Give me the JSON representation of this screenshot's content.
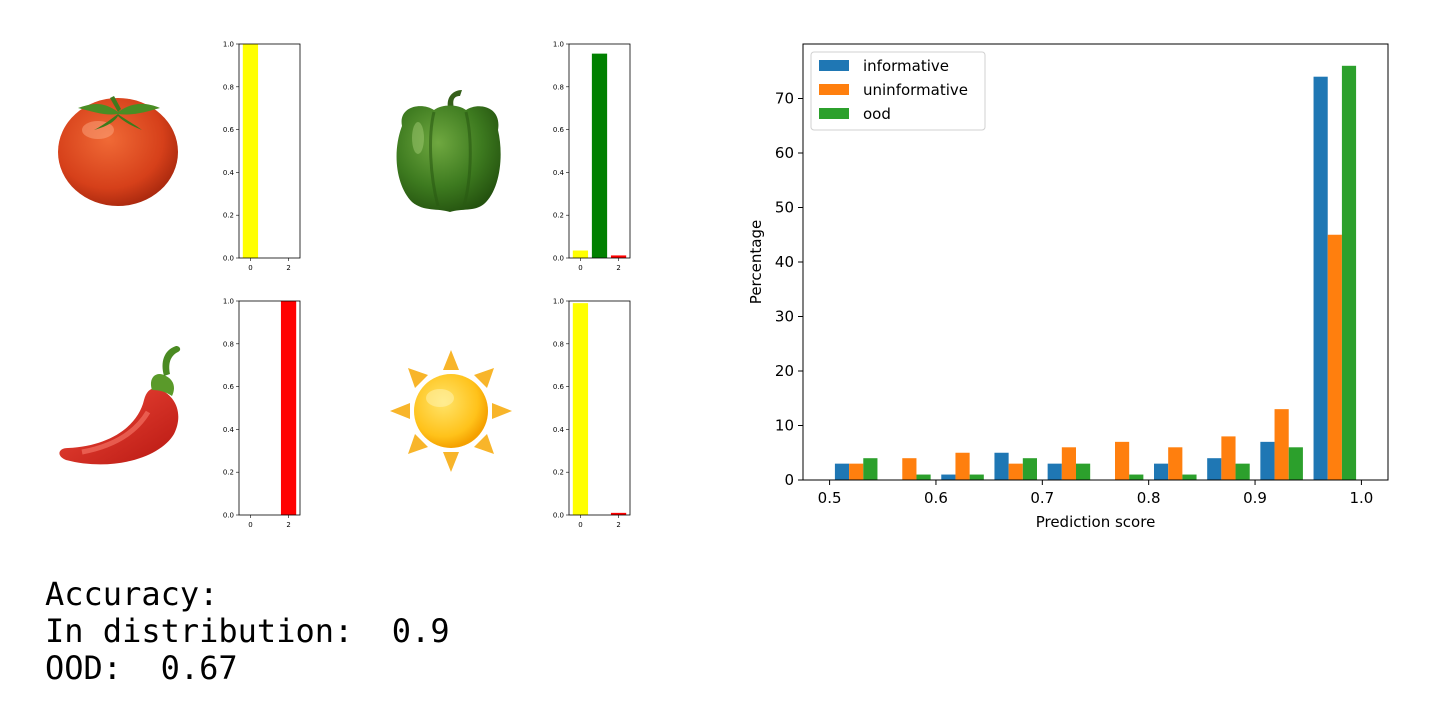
{
  "chart_data": [
    {
      "type": "bar",
      "icon": "tomato-icon",
      "categories": [
        0,
        1,
        2
      ],
      "values": [
        1.0,
        0.0,
        0.0
      ],
      "colors": [
        "#ffff00",
        "#008000",
        "#ff0000"
      ],
      "ylim": [
        0,
        1
      ],
      "yticks": [
        "0.0",
        "0.2",
        "0.4",
        "0.6",
        "0.8",
        "1.0"
      ],
      "xticks": [
        "0",
        "2"
      ]
    },
    {
      "type": "bar",
      "icon": "green-bell-pepper-icon",
      "categories": [
        0,
        1,
        2
      ],
      "values": [
        0.035,
        0.955,
        0.012
      ],
      "colors": [
        "#ffff00",
        "#008000",
        "#ff0000"
      ],
      "ylim": [
        0,
        1
      ],
      "yticks": [
        "0.0",
        "0.2",
        "0.4",
        "0.6",
        "0.8",
        "1.0"
      ],
      "xticks": [
        "0",
        "2"
      ]
    },
    {
      "type": "bar",
      "icon": "chili-pepper-icon",
      "categories": [
        0,
        1,
        2
      ],
      "values": [
        0.0,
        0.0,
        1.0
      ],
      "colors": [
        "#ffff00",
        "#008000",
        "#ff0000"
      ],
      "ylim": [
        0,
        1
      ],
      "yticks": [
        "0.0",
        "0.2",
        "0.4",
        "0.6",
        "0.8",
        "1.0"
      ],
      "xticks": [
        "0",
        "2"
      ]
    },
    {
      "type": "bar",
      "icon": "sun-icon",
      "categories": [
        0,
        1,
        2
      ],
      "values": [
        0.99,
        0.0,
        0.01
      ],
      "colors": [
        "#ffff00",
        "#008000",
        "#ff0000"
      ],
      "ylim": [
        0,
        1
      ],
      "yticks": [
        "0.0",
        "0.2",
        "0.4",
        "0.6",
        "0.8",
        "1.0"
      ],
      "xticks": [
        "0",
        "2"
      ]
    },
    {
      "type": "bar",
      "xlabel": "Prediction score",
      "ylabel": "Percentage",
      "xlim": [
        0.475,
        1.025
      ],
      "ylim": [
        0,
        80
      ],
      "xticks": [
        "0.5",
        "0.6",
        "0.7",
        "0.8",
        "0.9",
        "1.0"
      ],
      "yticks": [
        "0",
        "10",
        "20",
        "30",
        "40",
        "50",
        "60",
        "70"
      ],
      "legend_position": "top-left",
      "bin_edges": [
        0.5,
        0.55,
        0.6,
        0.65,
        0.7,
        0.75,
        0.8,
        0.85,
        0.9,
        0.95,
        1.0
      ],
      "series": [
        {
          "name": "informative",
          "color": "#1f77b4",
          "values": [
            3,
            0,
            1,
            5,
            3,
            0,
            3,
            4,
            7,
            74
          ]
        },
        {
          "name": "uninformative",
          "color": "#ff7f0e",
          "values": [
            3,
            4,
            5,
            3,
            6,
            7,
            6,
            8,
            13,
            45
          ]
        },
        {
          "name": "ood",
          "color": "#2ca02c",
          "values": [
            4,
            1,
            1,
            4,
            3,
            1,
            1,
            3,
            6,
            76
          ]
        }
      ]
    }
  ],
  "accuracy": {
    "heading": "Accuracy:",
    "in_distribution_label": "In distribution:",
    "in_distribution_value": "0.9",
    "ood_label": "OOD:",
    "ood_value": "0.67"
  }
}
